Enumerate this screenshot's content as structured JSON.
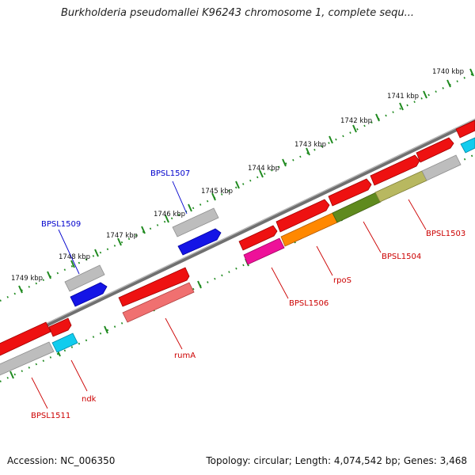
{
  "title": "Burkholderia pseudomallei K96243 chromosome 1, complete sequ...",
  "footer": {
    "accession": "Accession: NC_006350",
    "summary": "Topology: circular; Length: 4,074,542 bp; Genes: 3,468"
  },
  "scale_labels": [
    "1740 kbp",
    "1741 kbp",
    "1742 kbp",
    "1743 kbp",
    "1744 kbp",
    "1745 kbp",
    "1746 kbp",
    "1747 kbp",
    "1748 kbp",
    "1749 kbp"
  ],
  "gene_labels": {
    "bpsl1507": "BPSL1507",
    "bpsl1509": "BPSL1509",
    "bpsl1503": "BPSL1503",
    "bpsl1504": "BPSL1504",
    "bpsl1506": "BPSL1506",
    "rpos": "rpoS",
    "ruma": "rumA",
    "ndk": "ndk",
    "bpsl1511": "BPSL1511"
  },
  "colors": {
    "backbone": "#7a7a7a",
    "scale": "#1f8a1f",
    "red": "#ee1111",
    "blue": "#1111ee",
    "grey": "#bbbbbb",
    "magenta": "#ee1199",
    "orange": "#ff8800",
    "olive_dark": "#5f8a1e",
    "olive_light": "#b8b860",
    "salmon": "#f07070",
    "cyan": "#11ccee",
    "label_blue": "#0000cc",
    "label_red": "#cc0000"
  }
}
